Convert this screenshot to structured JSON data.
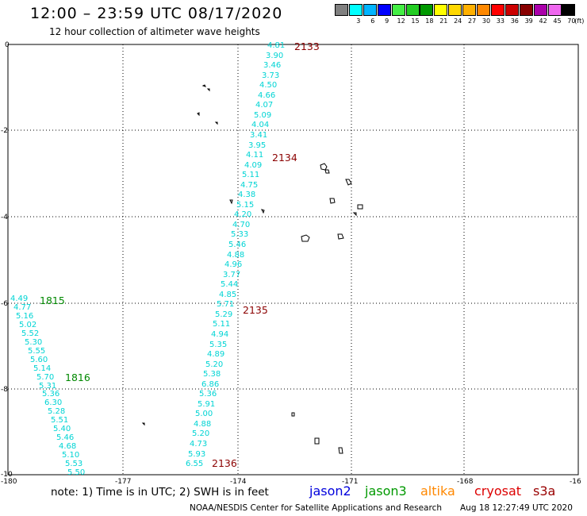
{
  "header": {
    "title": "12:00 – 23:59 UTC 08/17/2020",
    "subtitle": "12 hour collection of altimeter wave heights"
  },
  "legend": {
    "unit": "(ft)",
    "items": [
      {
        "label": "",
        "color": "#808080"
      },
      {
        "label": "3",
        "color": "#00ffff"
      },
      {
        "label": "6",
        "color": "#00b4ff"
      },
      {
        "label": "9",
        "color": "#0000ff"
      },
      {
        "label": "12",
        "color": "#44ee44"
      },
      {
        "label": "15",
        "color": "#22cc22"
      },
      {
        "label": "18",
        "color": "#009900"
      },
      {
        "label": "21",
        "color": "#ffff00"
      },
      {
        "label": "24",
        "color": "#ffd800"
      },
      {
        "label": "27",
        "color": "#ffb000"
      },
      {
        "label": "30",
        "color": "#ff8800"
      },
      {
        "label": "33",
        "color": "#ff0000"
      },
      {
        "label": "36",
        "color": "#cc0000"
      },
      {
        "label": "39",
        "color": "#880000"
      },
      {
        "label": "42",
        "color": "#aa00aa"
      },
      {
        "label": "45",
        "color": "#ee66ee"
      },
      {
        "label": "70",
        "color": "#000000"
      }
    ]
  },
  "map": {
    "x_ticks": [
      "-180",
      "-177",
      "-174",
      "-171",
      "-168",
      "-16"
    ],
    "y_ticks": [
      "0",
      "-2",
      "-4",
      "-6",
      "-8",
      "-10"
    ],
    "lon_range": [
      -180,
      -165
    ],
    "lat_range": [
      -10,
      0
    ],
    "grid": "dotted"
  },
  "tracks": {
    "track_color": "#00d4d4",
    "east_pass": {
      "values": [
        "4.81",
        "3.90",
        "3.46",
        "3.73",
        "4.50",
        "4.66",
        "4.07",
        "5.09",
        "4.04",
        "3.41",
        "3.95",
        "4.11",
        "4.09",
        "5.11",
        "4.75",
        "4.38",
        "5.15",
        "4.20",
        "4.70",
        "5.33",
        "5.46",
        "4.88",
        "4.96",
        "3.77",
        "5.44",
        "4.85",
        "5.71",
        "5.29",
        "5.11",
        "4.94",
        "5.35",
        "4.89",
        "5.20",
        "5.38",
        "6.86",
        "5.36",
        "5.91",
        "5.00",
        "4.88",
        "5.20",
        "4.73",
        "5.93",
        "6.55"
      ]
    },
    "west_pass": {
      "values": [
        "4.49",
        "4.77",
        "5.16",
        "5.02",
        "5.52",
        "5.30",
        "5.55",
        "5.60",
        "5.14",
        "5.70",
        "5.31",
        "5.36",
        "6.30",
        "5.28",
        "5.51",
        "5.40",
        "5.46",
        "4.68",
        "5.10",
        "5.53",
        "5.50"
      ]
    }
  },
  "time_labels": [
    {
      "text": "2133",
      "color": "#8b0000"
    },
    {
      "text": "2134",
      "color": "#8b0000"
    },
    {
      "text": "2135",
      "color": "#8b0000"
    },
    {
      "text": "2136",
      "color": "#8b0000"
    },
    {
      "text": "1815",
      "color": "#008800"
    },
    {
      "text": "1816",
      "color": "#008800"
    }
  ],
  "footer": {
    "note": "note:  1) Time is in UTC;  2) SWH is in feet",
    "satellites": [
      {
        "name": "jason2",
        "color": "#0000dd"
      },
      {
        "name": "jason3",
        "color": "#009900"
      },
      {
        "name": "altika",
        "color": "#ff8800"
      },
      {
        "name": "cryosat",
        "color": "#dd0000"
      },
      {
        "name": "s3a",
        "color": "#990000"
      }
    ],
    "credit": "NOAA/NESDIS Center for Satellite Applications and Research",
    "timestamp": "Aug 18 12:27:49 UTC 2020"
  }
}
